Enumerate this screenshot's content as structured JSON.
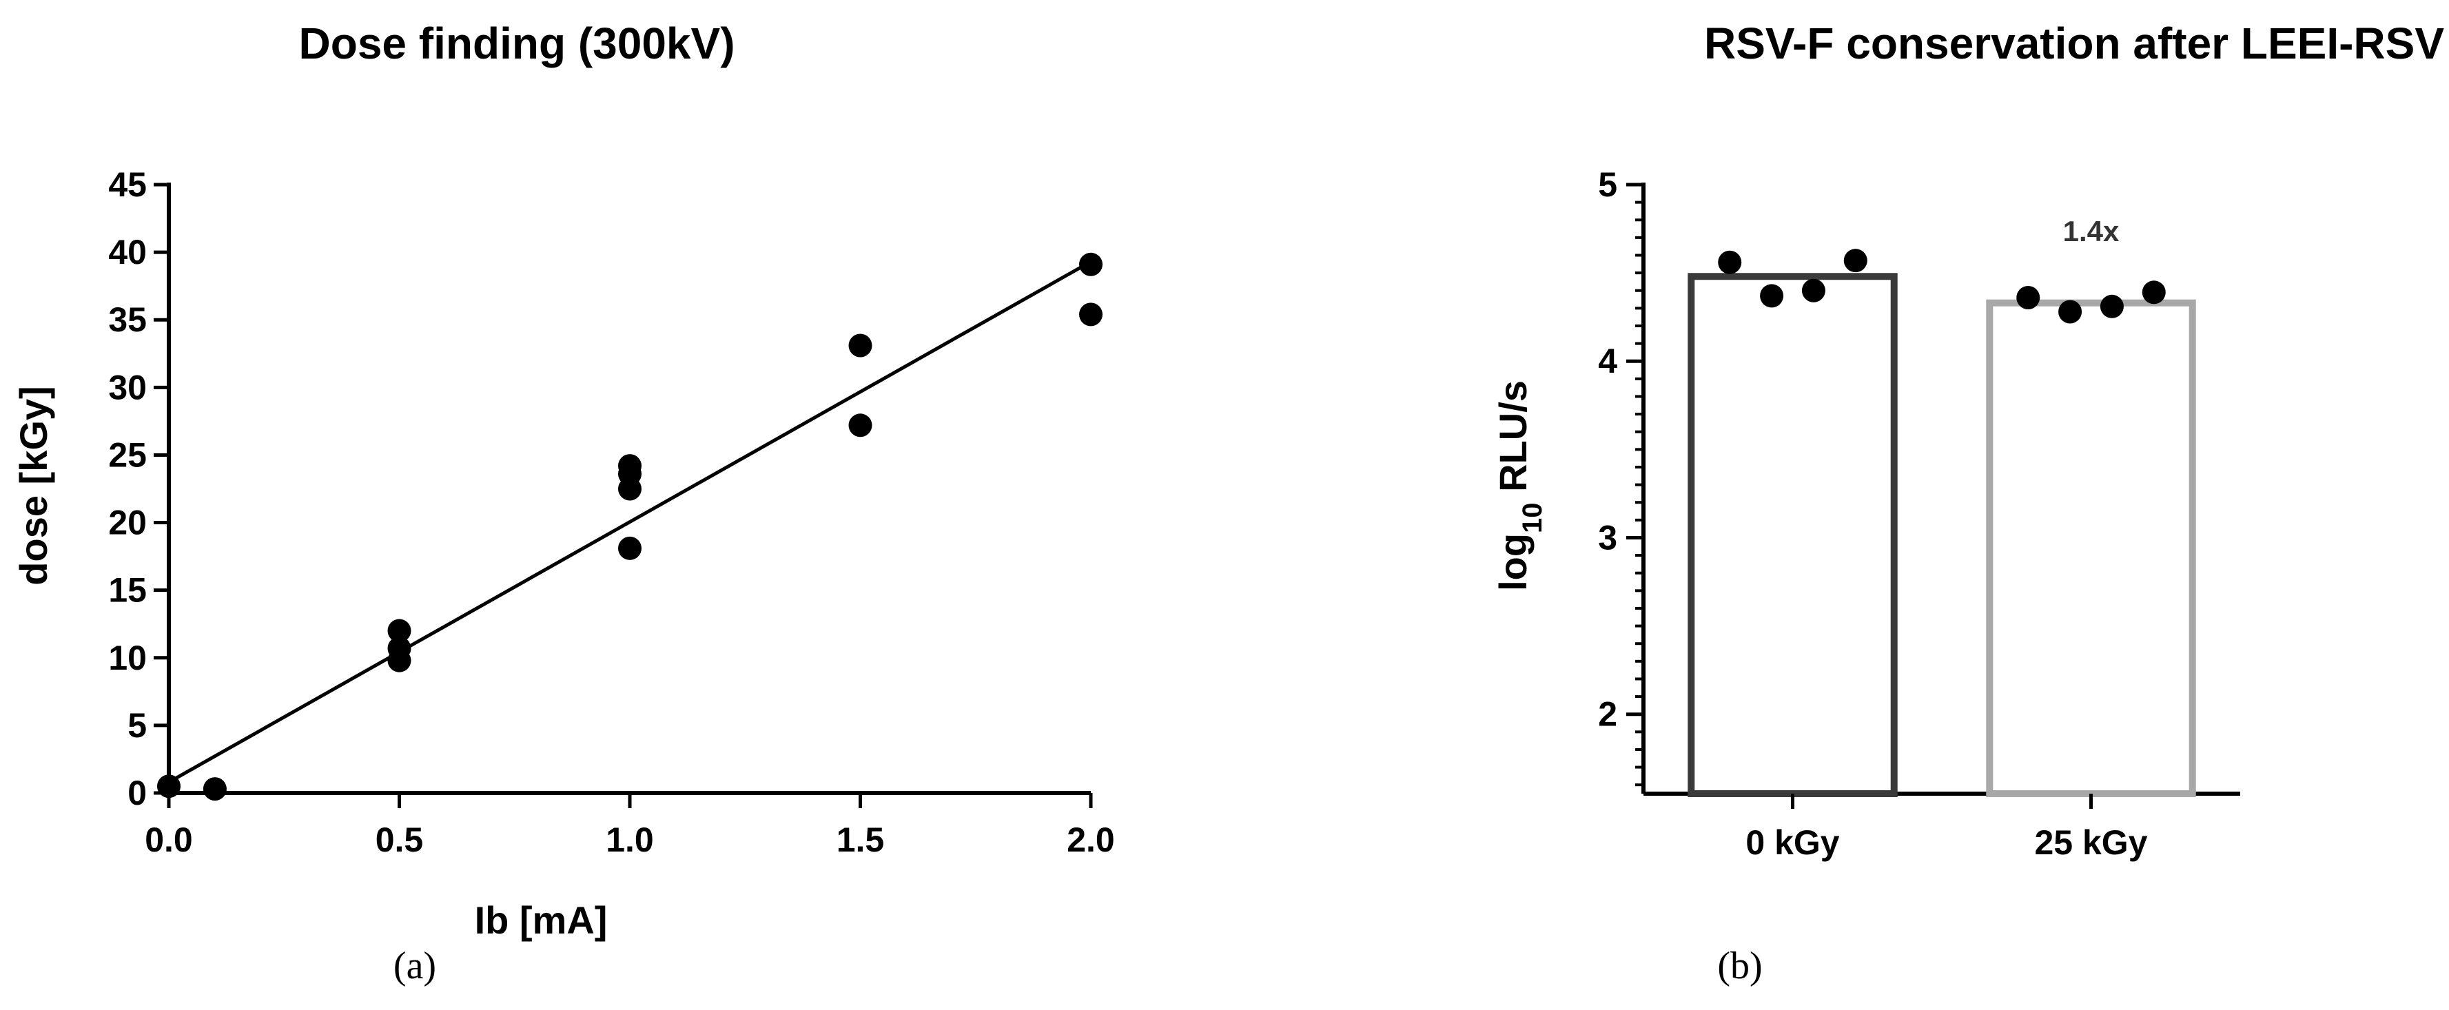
{
  "chart_data": [
    {
      "type": "scatter",
      "title": "Dose finding (300kV)",
      "xlabel": "Ib [mA]",
      "ylabel": "dose [kGy]",
      "panel_label": "(a)",
      "xlim": [
        0,
        2.0
      ],
      "ylim": [
        0,
        45
      ],
      "xticks": [
        0,
        0.5,
        1.0,
        1.5,
        2.0
      ],
      "xtick_labels": [
        "0.0",
        "0.5",
        "1.0",
        "1.5",
        "2.0"
      ],
      "yticks": [
        0,
        5,
        10,
        15,
        20,
        25,
        30,
        35,
        40,
        45
      ],
      "ytick_labels": [
        "0",
        "5",
        "10",
        "15",
        "20",
        "25",
        "30",
        "35",
        "40",
        "45"
      ],
      "points": [
        {
          "x": 0.0,
          "y": 0.5
        },
        {
          "x": 0.1,
          "y": 0.3
        },
        {
          "x": 0.5,
          "y": 12.0
        },
        {
          "x": 0.5,
          "y": 10.7
        },
        {
          "x": 0.5,
          "y": 9.8
        },
        {
          "x": 1.0,
          "y": 24.2
        },
        {
          "x": 1.0,
          "y": 23.6
        },
        {
          "x": 1.0,
          "y": 22.5
        },
        {
          "x": 1.0,
          "y": 18.1
        },
        {
          "x": 1.5,
          "y": 33.1
        },
        {
          "x": 1.5,
          "y": 27.2
        },
        {
          "x": 2.0,
          "y": 39.1
        },
        {
          "x": 2.0,
          "y": 35.4
        }
      ],
      "fit_line": {
        "x0": 0.0,
        "y0": 0.8,
        "x1": 2.0,
        "y1": 39.3
      }
    },
    {
      "type": "bar",
      "title": "RSV-F conservation after LEEI-RSV",
      "ylabel_main": "log",
      "ylabel_sub": "10",
      "ylabel_rest": " RLU/s",
      "panel_label": "(b)",
      "categories": [
        "0 kGy",
        "25 kGy"
      ],
      "values": [
        4.48,
        4.33
      ],
      "bar_colors": [
        "#3a3a3a",
        "#a8a8a8"
      ],
      "ylim": [
        1.55,
        5.0
      ],
      "yticks": [
        2,
        3,
        4,
        5
      ],
      "ytick_labels": [
        "2",
        "3",
        "4",
        "5"
      ],
      "points": [
        [
          4.56,
          4.37,
          4.4,
          4.57
        ],
        [
          4.36,
          4.28,
          4.31,
          4.39
        ]
      ],
      "annotation": "1.4x"
    }
  ]
}
